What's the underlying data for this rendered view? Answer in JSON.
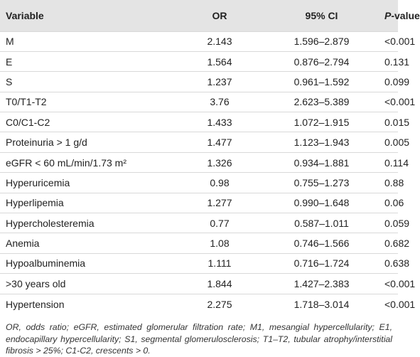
{
  "table": {
    "header": [
      "Variable",
      "OR",
      "95% CI",
      {
        "italic": "P",
        "rest": "-value"
      }
    ],
    "rows": [
      [
        "M",
        "2.143",
        "1.596–2.879",
        "<0.001"
      ],
      [
        "E",
        "1.564",
        "0.876–2.794",
        "0.131"
      ],
      [
        "S",
        "1.237",
        "0.961–1.592",
        "0.099"
      ],
      [
        "T0/T1-T2",
        "3.76",
        "2.623–5.389",
        "<0.001"
      ],
      [
        "C0/C1-C2",
        "1.433",
        "1.072–1.915",
        "0.015"
      ],
      [
        "Proteinuria > 1 g/d",
        "1.477",
        "1.123–1.943",
        "0.005"
      ],
      [
        "eGFR < 60 mL/min/1.73 m²",
        "1.326",
        "0.934–1.881",
        "0.114"
      ],
      [
        "Hyperuricemia",
        "0.98",
        "0.755–1.273",
        "0.88"
      ],
      [
        "Hyperlipemia",
        "1.277",
        "0.990–1.648",
        "0.06"
      ],
      [
        "Hypercholesteremia",
        "0.77",
        "0.587–1.011",
        "0.059"
      ],
      [
        "Anemia",
        "1.08",
        "0.746–1.566",
        "0.682"
      ],
      [
        "Hypoalbuminemia",
        "1.111",
        "0.716–1.724",
        "0.638"
      ],
      [
        ">30 years old",
        "1.844",
        "1.427–2.383",
        "<0.001"
      ],
      [
        "Hypertension",
        "2.275",
        "1.718–3.014",
        "<0.001"
      ]
    ]
  },
  "footnote": "OR, odds ratio; eGFR, estimated glomerular filtration rate; M1, mesangial hypercellularity; E1, endocapillary hypercellularity; S1, segmental glomerulosclerosis; T1–T2, tubular atrophy/interstitial fibrosis > 25%; C1-C2, crescents > 0."
}
